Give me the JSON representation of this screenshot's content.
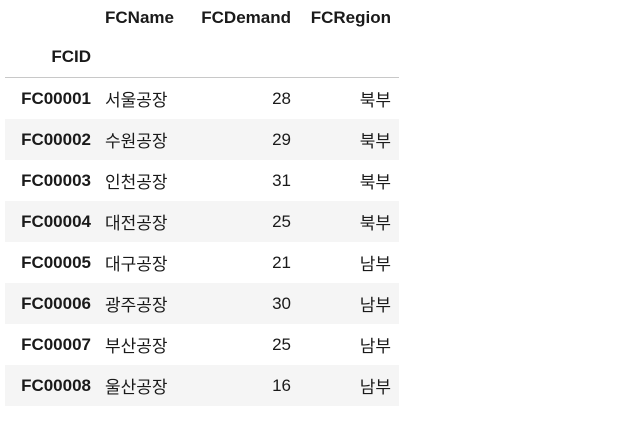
{
  "table": {
    "columns": [
      "FCName",
      "FCDemand",
      "FCRegion"
    ],
    "index_name": "FCID",
    "rows": [
      {
        "id": "FC00001",
        "name": "서울공장",
        "demand": "28",
        "region": "북부"
      },
      {
        "id": "FC00002",
        "name": "수원공장",
        "demand": "29",
        "region": "북부"
      },
      {
        "id": "FC00003",
        "name": "인천공장",
        "demand": "31",
        "region": "북부"
      },
      {
        "id": "FC00004",
        "name": "대전공장",
        "demand": "25",
        "region": "북부"
      },
      {
        "id": "FC00005",
        "name": "대구공장",
        "demand": "21",
        "region": "남부"
      },
      {
        "id": "FC00006",
        "name": "광주공장",
        "demand": "30",
        "region": "남부"
      },
      {
        "id": "FC00007",
        "name": "부산공장",
        "demand": "25",
        "region": "남부"
      },
      {
        "id": "FC00008",
        "name": "울산공장",
        "demand": "16",
        "region": "남부"
      }
    ]
  },
  "colors": {
    "stripe": "#f5f5f5",
    "header_rule": "#c8c8c8",
    "text": "#1a1a1a"
  }
}
